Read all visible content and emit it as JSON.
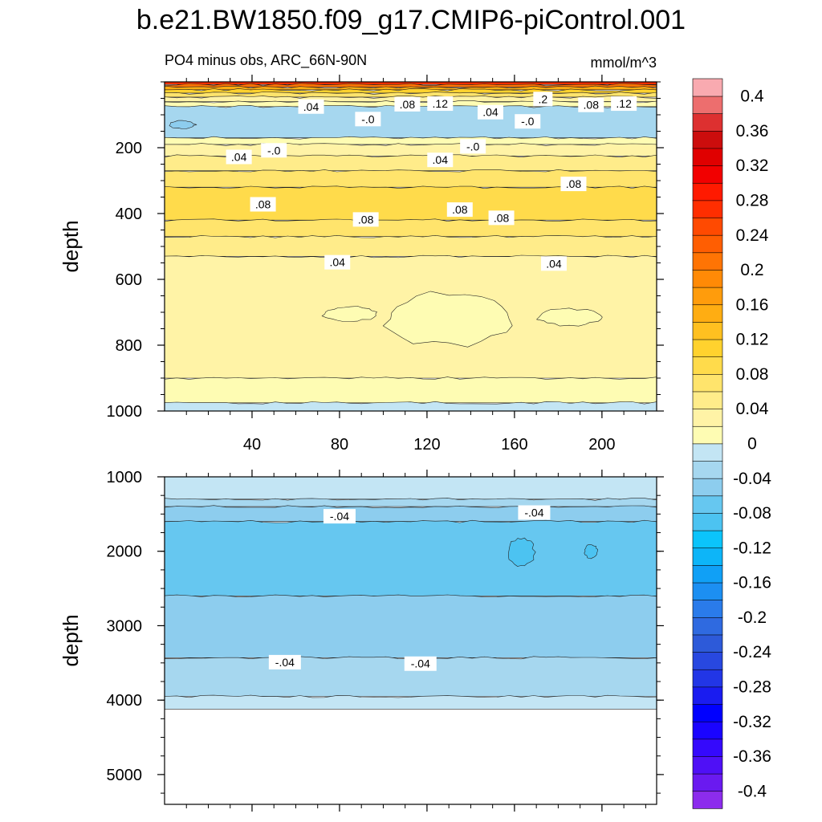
{
  "chart_data": {
    "type": "contour",
    "title": "b.e21.BW1850.f09_g17.CMIP6-piControl.001",
    "left_subtitle": "PO4 minus obs, ARC_66N-90N",
    "right_subtitle": "mmol/m^3",
    "colorbar": {
      "levels": [
        -0.42,
        -0.4,
        -0.38,
        -0.36,
        -0.34,
        -0.32,
        -0.3,
        -0.28,
        -0.26,
        -0.24,
        -0.22,
        -0.2,
        -0.18,
        -0.16,
        -0.14,
        -0.12,
        -0.1,
        -0.08,
        -0.06,
        -0.04,
        -0.02,
        0,
        0.02,
        0.04,
        0.06,
        0.08,
        0.1,
        0.12,
        0.14,
        0.16,
        0.18,
        0.2,
        0.22,
        0.24,
        0.26,
        0.28,
        0.3,
        0.32,
        0.34,
        0.36,
        0.38,
        0.4,
        0.42
      ],
      "colors": [
        "#8c2ced",
        "#6a1af0",
        "#4f10f6",
        "#3509fc",
        "#1a04ff",
        "#0000ff",
        "#1a1cf0",
        "#2236e6",
        "#2848e0",
        "#2d5ad9",
        "#2f6ae0",
        "#2a7bea",
        "#1c8ff2",
        "#10a0f6",
        "#0db5f8",
        "#0bc4fb",
        "#4cc3f1",
        "#66c7f0",
        "#8dcdee",
        "#a6d7ef",
        "#c3e5f4",
        "#fefcb3",
        "#fff3a6",
        "#ffec8a",
        "#ffe46c",
        "#ffdb4b",
        "#ffd22e",
        "#ffc020",
        "#ffad12",
        "#ff9c0c",
        "#ff8a06",
        "#ff7404",
        "#ff5e02",
        "#ff4a01",
        "#ff2e00",
        "#ff1a00",
        "#f20000",
        "#e00000",
        "#cc0d0d",
        "#dd3030",
        "#ed6e6e",
        "#f9aab0"
      ],
      "tick_labels": [
        "0.4",
        "0.36",
        "0.32",
        "0.28",
        "0.24",
        "0.2",
        "0.16",
        "0.12",
        "0.08",
        "0.04",
        "0",
        "-0.04",
        "-0.08",
        "-0.12",
        "-0.16",
        "-0.2",
        "-0.24",
        "-0.28",
        "-0.32",
        "-0.36",
        "-0.4"
      ],
      "tick_values": [
        0.4,
        0.36,
        0.32,
        0.28,
        0.24,
        0.2,
        0.16,
        0.12,
        0.08,
        0.04,
        0,
        -0.04,
        -0.08,
        -0.12,
        -0.16,
        -0.2,
        -0.24,
        -0.28,
        -0.32,
        -0.36,
        -0.4
      ]
    },
    "panels": [
      {
        "name": "upper",
        "ylabel": "depth",
        "ylim": [
          0,
          1000
        ],
        "xlim": [
          0,
          225
        ],
        "y_ticks": [
          200,
          400,
          600,
          800,
          1000
        ],
        "y_tick_labels": [
          "200",
          "400",
          "600",
          "800",
          "1000"
        ],
        "x_ticks": [
          40,
          80,
          120,
          160,
          200
        ],
        "x_tick_labels": [
          "40",
          "80",
          "120",
          "160",
          "200"
        ],
        "bands": [
          {
            "top": 0,
            "bottom": 8,
            "value": 0.26
          },
          {
            "top": 8,
            "bottom": 16,
            "value": 0.2
          },
          {
            "top": 16,
            "bottom": 24,
            "value": 0.15
          },
          {
            "top": 24,
            "bottom": 34,
            "value": 0.11
          },
          {
            "top": 34,
            "bottom": 46,
            "value": 0.07
          },
          {
            "top": 46,
            "bottom": 60,
            "value": 0.03
          },
          {
            "top": 60,
            "bottom": 75,
            "value": 0.01
          },
          {
            "top": 75,
            "bottom": 170,
            "value": -0.03
          },
          {
            "top": 170,
            "bottom": 190,
            "value": 0.01
          },
          {
            "top": 190,
            "bottom": 225,
            "value": 0.03
          },
          {
            "top": 225,
            "bottom": 270,
            "value": 0.05
          },
          {
            "top": 270,
            "bottom": 320,
            "value": 0.07
          },
          {
            "top": 320,
            "bottom": 420,
            "value": 0.09
          },
          {
            "top": 420,
            "bottom": 470,
            "value": 0.07
          },
          {
            "top": 470,
            "bottom": 530,
            "value": 0.05
          },
          {
            "top": 530,
            "bottom": 900,
            "value": 0.03
          },
          {
            "top": 900,
            "bottom": 975,
            "value": 0.01
          },
          {
            "top": 975,
            "bottom": 1000,
            "value": -0.01
          }
        ],
        "blobs": [
          {
            "x": 130,
            "y": 720,
            "rx": 30,
            "ry": 80,
            "value": 0.01
          },
          {
            "x": 85,
            "y": 705,
            "rx": 12,
            "ry": 22,
            "value": 0.01
          },
          {
            "x": 185,
            "y": 715,
            "rx": 15,
            "ry": 25,
            "value": 0.01
          },
          {
            "x": 8,
            "y": 130,
            "rx": 6,
            "ry": 12,
            "value": -0.05
          }
        ],
        "contour_labels": [
          {
            "text": ".04",
            "x": 67,
            "y": 75
          },
          {
            "text": ".08",
            "x": 111,
            "y": 68
          },
          {
            "text": ".12",
            "x": 126,
            "y": 66
          },
          {
            "text": ".2",
            "x": 173,
            "y": 52
          },
          {
            "text": ".08",
            "x": 195,
            "y": 70
          },
          {
            "text": ".12",
            "x": 210,
            "y": 66
          },
          {
            "text": ".04",
            "x": 149,
            "y": 92
          },
          {
            "text": "-.0",
            "x": 93,
            "y": 113
          },
          {
            "text": "-.0",
            "x": 166,
            "y": 120
          },
          {
            "text": ".04",
            "x": 34,
            "y": 228
          },
          {
            "text": "-.0",
            "x": 50,
            "y": 208
          },
          {
            "text": "-.0",
            "x": 141,
            "y": 196
          },
          {
            "text": ".04",
            "x": 126,
            "y": 237
          },
          {
            "text": ".08",
            "x": 187,
            "y": 310
          },
          {
            "text": ".08",
            "x": 45,
            "y": 372
          },
          {
            "text": ".08",
            "x": 92,
            "y": 418
          },
          {
            "text": ".08",
            "x": 135,
            "y": 388
          },
          {
            "text": ".08",
            "x": 154,
            "y": 413
          },
          {
            "text": ".04",
            "x": 79,
            "y": 548
          },
          {
            "text": ".04",
            "x": 178,
            "y": 552
          }
        ]
      },
      {
        "name": "lower",
        "ylabel": "depth",
        "ylim": [
          1000,
          5400
        ],
        "xlim": [
          0,
          225
        ],
        "y_ticks": [
          1000,
          2000,
          3000,
          4000,
          5000
        ],
        "y_tick_labels": [
          "1000",
          "2000",
          "3000",
          "4000",
          "5000"
        ],
        "x_ticks": [
          40,
          80,
          120,
          160,
          200
        ],
        "bands": [
          {
            "top": 1000,
            "bottom": 1300,
            "value": -0.01
          },
          {
            "top": 1300,
            "bottom": 1400,
            "value": -0.03
          },
          {
            "top": 1400,
            "bottom": 1600,
            "value": -0.05
          },
          {
            "top": 1600,
            "bottom": 2600,
            "value": -0.07
          },
          {
            "top": 2600,
            "bottom": 3430,
            "value": -0.05
          },
          {
            "top": 3430,
            "bottom": 3950,
            "value": -0.03
          },
          {
            "top": 3950,
            "bottom": 4120,
            "value": -0.01
          }
        ],
        "blobs": [
          {
            "x": 163,
            "y": 2010,
            "rx": 6,
            "ry": 190,
            "value": -0.09
          },
          {
            "x": 195,
            "y": 2000,
            "rx": 3,
            "ry": 90,
            "value": -0.09
          }
        ],
        "contour_labels": [
          {
            "text": "-.04",
            "x": 80,
            "y": 1530
          },
          {
            "text": "-.04",
            "x": 169,
            "y": 1480
          },
          {
            "text": "-.04",
            "x": 55,
            "y": 3490
          },
          {
            "text": "-.04",
            "x": 117,
            "y": 3510
          }
        ]
      }
    ]
  }
}
